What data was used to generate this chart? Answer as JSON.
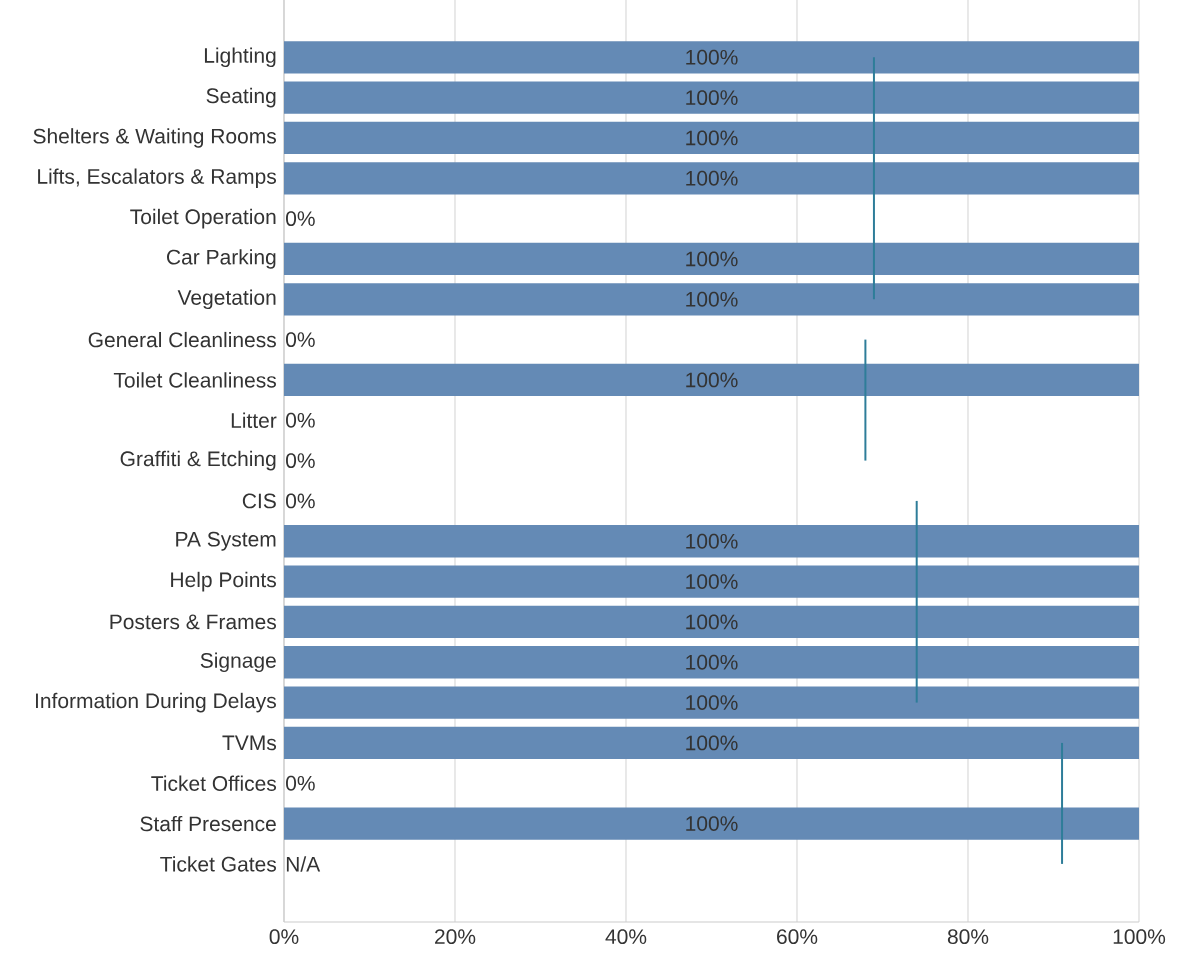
{
  "chart_data": {
    "type": "bar",
    "orientation": "horizontal",
    "categories": [
      "Lighting",
      "Seating",
      "Shelters & Waiting Rooms",
      "Lifts, Escalators & Ramps",
      "Toilet Operation",
      "Car Parking",
      "Vegetation",
      "General Cleanliness",
      "Toilet Cleanliness",
      "Litter",
      "Graffiti & Etching",
      "CIS",
      "PA System",
      "Help Points",
      "Posters & Frames",
      "Signage",
      "Information During Delays",
      "TVMs",
      "Ticket Offices",
      "Staff Presence",
      "Ticket Gates"
    ],
    "series": [
      {
        "color": "#648ab5",
        "values": [
          100,
          100,
          100,
          100,
          0,
          100,
          100,
          0,
          100,
          0,
          0,
          0,
          100,
          100,
          100,
          100,
          100,
          100,
          0,
          100,
          null
        ],
        "value_labels": [
          "100%",
          "100%",
          "100%",
          "100%",
          "0%",
          "100%",
          "100%",
          "0%",
          "100%",
          "0%",
          "0%",
          "0%",
          "100%",
          "100%",
          "100%",
          "100%",
          "100%",
          "100%",
          "0%",
          "100%",
          "N/A"
        ]
      },
      {
        "type": "line",
        "color": "#2e7d99",
        "values": [
          69,
          69,
          69,
          69,
          69,
          69,
          69,
          null,
          null,
          null,
          null,
          null,
          null,
          null,
          null,
          null,
          null,
          null,
          null,
          null,
          null
        ]
      },
      {
        "type": "line",
        "color": "#2e7d99",
        "values": [
          null,
          null,
          null,
          null,
          null,
          null,
          null,
          68,
          68,
          68,
          68,
          null,
          null,
          null,
          null,
          null,
          null,
          null,
          null,
          null,
          null
        ]
      },
      {
        "type": "line",
        "color": "#2e7d99",
        "values": [
          null,
          null,
          null,
          null,
          null,
          null,
          null,
          null,
          null,
          null,
          null,
          74,
          74,
          74,
          74,
          74,
          74,
          null,
          null,
          null,
          null
        ]
      },
      {
        "type": "line",
        "color": "#2e7d99",
        "values": [
          null,
          null,
          null,
          null,
          null,
          null,
          null,
          null,
          null,
          null,
          null,
          null,
          null,
          null,
          null,
          null,
          null,
          91,
          91,
          91,
          91
        ]
      }
    ],
    "xlim": [
      0,
      100
    ],
    "xticks": [
      {
        "value": 0,
        "label": "0%"
      },
      {
        "value": 20,
        "label": "20%"
      },
      {
        "value": 40,
        "label": "40%"
      },
      {
        "value": 60,
        "label": "60%"
      },
      {
        "value": 80,
        "label": "80%"
      },
      {
        "value": 100,
        "label": "100%"
      }
    ],
    "grid": "x"
  }
}
